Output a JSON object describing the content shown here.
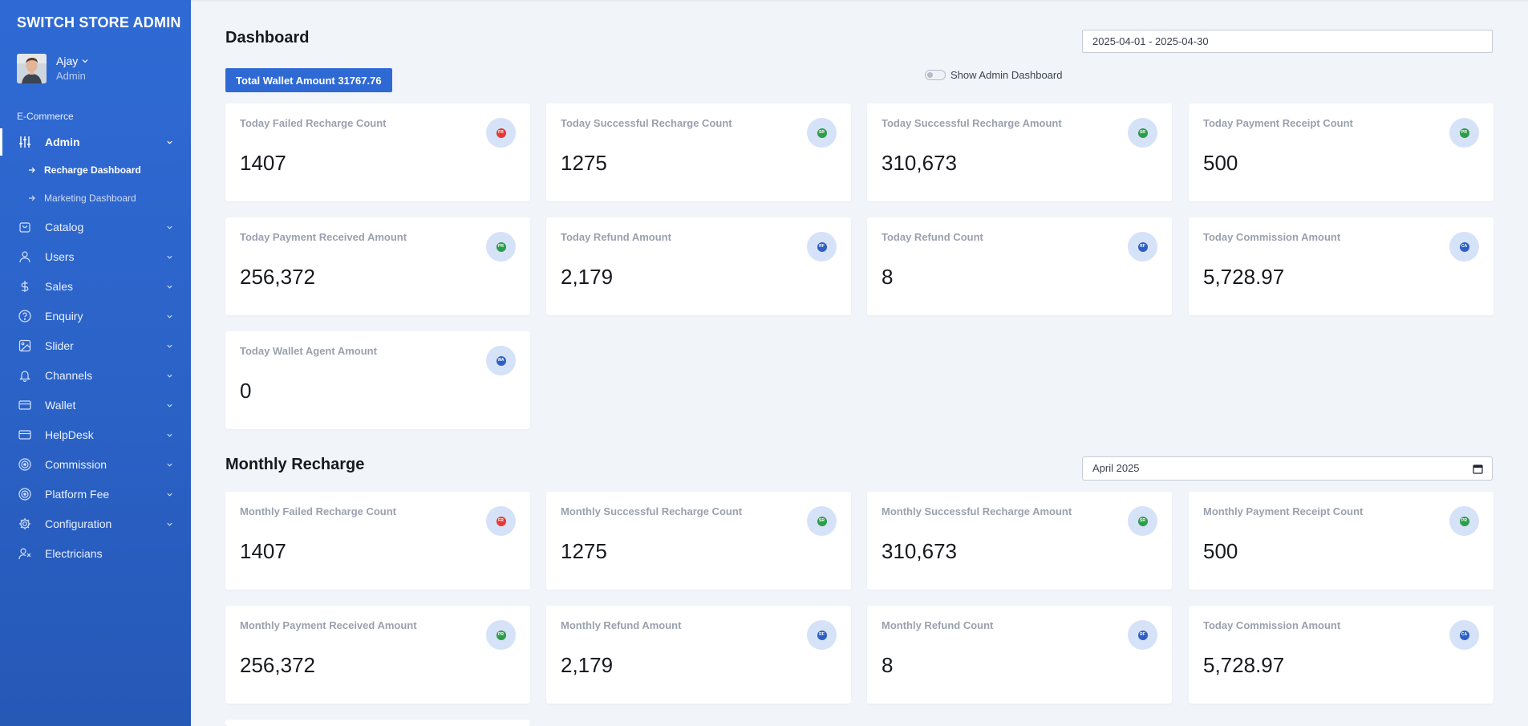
{
  "brand": "SWITCH STORE ADMIN",
  "user": {
    "name": "Ajay",
    "role": "Admin"
  },
  "sidebar": {
    "section_label": "E-Commerce",
    "admin": {
      "label": "Admin",
      "icon": "sliders-icon"
    },
    "sub_items": [
      {
        "label": "Recharge Dashboard",
        "active": true
      },
      {
        "label": "Marketing Dashboard",
        "active": false
      }
    ],
    "items": [
      {
        "label": "Catalog",
        "icon": "bag-icon"
      },
      {
        "label": "Users",
        "icon": "user-icon"
      },
      {
        "label": "Sales",
        "icon": "dollar-icon"
      },
      {
        "label": "Enquiry",
        "icon": "help-circle-icon"
      },
      {
        "label": "Slider",
        "icon": "image-icon"
      },
      {
        "label": "Channels",
        "icon": "bell-icon"
      },
      {
        "label": "Wallet",
        "icon": "card-icon"
      },
      {
        "label": "HelpDesk",
        "icon": "card-icon"
      },
      {
        "label": "Commission",
        "icon": "target-icon"
      },
      {
        "label": "Platform Fee",
        "icon": "target-icon"
      },
      {
        "label": "Configuration",
        "icon": "gear-icon"
      },
      {
        "label": "Electricians",
        "icon": "user-x-icon"
      }
    ]
  },
  "dashboard": {
    "title": "Dashboard",
    "date_range": "2025-04-01 - 2025-04-30",
    "wallet_badge": "Total Wallet Amount 31767.76",
    "toggle_label": "Show Admin Dashboard"
  },
  "today_cards": [
    {
      "label": "Today Failed Recharge Count",
      "value": "1407",
      "badge": "FR",
      "color": "#e53935"
    },
    {
      "label": "Today Successful Recharge Count",
      "value": "1275",
      "badge": "SR",
      "color": "#2e9d4a"
    },
    {
      "label": "Today Successful Recharge Amount",
      "value": "310,673",
      "badge": "SR",
      "color": "#2e9d4a"
    },
    {
      "label": "Today Payment Receipt Count",
      "value": "500",
      "badge": "PR",
      "color": "#2e9d4a"
    },
    {
      "label": "Today Payment Received Amount",
      "value": "256,372",
      "badge": "PR",
      "color": "#2e9d4a"
    },
    {
      "label": "Today Refund Amount",
      "value": "2,179",
      "badge": "RF",
      "color": "#2f5fc4"
    },
    {
      "label": "Today Refund Count",
      "value": "8",
      "badge": "RF",
      "color": "#2f5fc4"
    },
    {
      "label": "Today Commission Amount",
      "value": "5,728.97",
      "badge": "CA",
      "color": "#2f5fc4"
    },
    {
      "label": "Today Wallet Agent Amount",
      "value": "0",
      "badge": "WA",
      "color": "#2f5fc4"
    }
  ],
  "monthly": {
    "title": "Monthly Recharge",
    "month": "April 2025"
  },
  "monthly_cards": [
    {
      "label": "Monthly Failed Recharge Count",
      "value": "1407",
      "badge": "FR",
      "color": "#e53935"
    },
    {
      "label": "Monthly Successful Recharge Count",
      "value": "1275",
      "badge": "SR",
      "color": "#2e9d4a"
    },
    {
      "label": "Monthly Successful Recharge Amount",
      "value": "310,673",
      "badge": "SR",
      "color": "#2e9d4a"
    },
    {
      "label": "Monthly Payment Receipt Count",
      "value": "500",
      "badge": "PR",
      "color": "#2e9d4a"
    },
    {
      "label": "Monthly Payment Received Amount",
      "value": "256,372",
      "badge": "PR",
      "color": "#2e9d4a"
    },
    {
      "label": "Monthly Refund Amount",
      "value": "2,179",
      "badge": "RF",
      "color": "#2f5fc4"
    },
    {
      "label": "Monthly Refund Count",
      "value": "8",
      "badge": "RF",
      "color": "#2f5fc4"
    },
    {
      "label": "Today Commission Amount",
      "value": "5,728.97",
      "badge": "CA",
      "color": "#2f5fc4"
    },
    {
      "label": "",
      "value": "",
      "badge": "",
      "color": "#2f5fc4"
    }
  ]
}
